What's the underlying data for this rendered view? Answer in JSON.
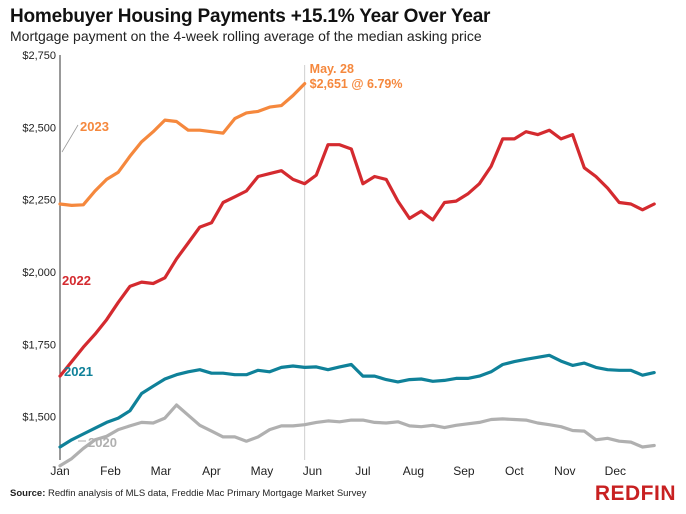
{
  "header": {
    "title": "Homebuyer Housing Payments +15.1% Year Over Year",
    "subtitle": "Mortgage payment on the 4-week rolling average of the median asking price"
  },
  "footer": {
    "source_label": "Source:",
    "source_text": "Redfin analysis of MLS data, Freddie Mac Primary Mortgage Market Survey",
    "logo": "REDFIN"
  },
  "chart_data": {
    "type": "line",
    "title": "Homebuyer Housing Payments +15.1% Year Over Year",
    "subtitle": "Mortgage payment on the 4-week rolling average of the median asking price",
    "x_ticks": [
      "Jan",
      "Feb",
      "Mar",
      "Apr",
      "May",
      "Jun",
      "Jul",
      "Aug",
      "Sep",
      "Oct",
      "Nov",
      "Dec"
    ],
    "x_unit": "week",
    "xlim": [
      1,
      52.5
    ],
    "y_ticks": [
      "$1,500",
      "$1,750",
      "$2,000",
      "$2,250",
      "$2,500",
      "$2,750"
    ],
    "ylim": [
      1350,
      2750
    ],
    "grid": false,
    "reference_line": {
      "x": 22,
      "style": "vertical"
    },
    "annotation": {
      "lines": [
        "May. 28",
        "$2,651 @ 6.79%"
      ],
      "x": 22,
      "y": 2651,
      "color": "#f5883d"
    },
    "series": [
      {
        "name": "2023",
        "color": "#f5883d",
        "values": [
          2235,
          2230,
          2232,
          2280,
          2320,
          2345,
          2400,
          2450,
          2485,
          2525,
          2520,
          2490,
          2490,
          2485,
          2480,
          2530,
          2550,
          2555,
          2570,
          2575,
          2610,
          2651
        ]
      },
      {
        "name": "2022",
        "color": "#d42a2f",
        "values": [
          1640,
          1690,
          1740,
          1785,
          1835,
          1895,
          1950,
          1965,
          1960,
          1980,
          2045,
          2100,
          2155,
          2170,
          2240,
          2260,
          2280,
          2330,
          2340,
          2350,
          2320,
          2305,
          2335,
          2440,
          2440,
          2425,
          2305,
          2330,
          2320,
          2245,
          2185,
          2210,
          2180,
          2240,
          2245,
          2270,
          2305,
          2365,
          2460,
          2460,
          2485,
          2475,
          2490,
          2460,
          2475,
          2360,
          2330,
          2290,
          2240,
          2235,
          2215,
          2235
        ]
      },
      {
        "name": "2021",
        "color": "#0f8199",
        "values": [
          1395,
          1420,
          1440,
          1460,
          1480,
          1495,
          1520,
          1580,
          1605,
          1630,
          1645,
          1655,
          1662,
          1650,
          1650,
          1645,
          1645,
          1660,
          1655,
          1670,
          1675,
          1670,
          1672,
          1662,
          1672,
          1680,
          1640,
          1640,
          1628,
          1620,
          1628,
          1630,
          1622,
          1625,
          1632,
          1632,
          1640,
          1655,
          1680,
          1690,
          1698,
          1705,
          1712,
          1692,
          1677,
          1685,
          1670,
          1662,
          1660,
          1660,
          1643,
          1652
        ]
      },
      {
        "name": "2020",
        "color": "#b0b0b0",
        "values": [
          1330,
          1355,
          1390,
          1420,
          1432,
          1455,
          1468,
          1480,
          1478,
          1495,
          1540,
          1505,
          1470,
          1450,
          1430,
          1430,
          1415,
          1430,
          1455,
          1468,
          1468,
          1472,
          1480,
          1485,
          1482,
          1488,
          1488,
          1480,
          1478,
          1482,
          1468,
          1465,
          1470,
          1462,
          1470,
          1475,
          1480,
          1490,
          1492,
          1490,
          1488,
          1478,
          1472,
          1465,
          1452,
          1450,
          1420,
          1425,
          1415,
          1412,
          1395,
          1400
        ]
      }
    ]
  }
}
